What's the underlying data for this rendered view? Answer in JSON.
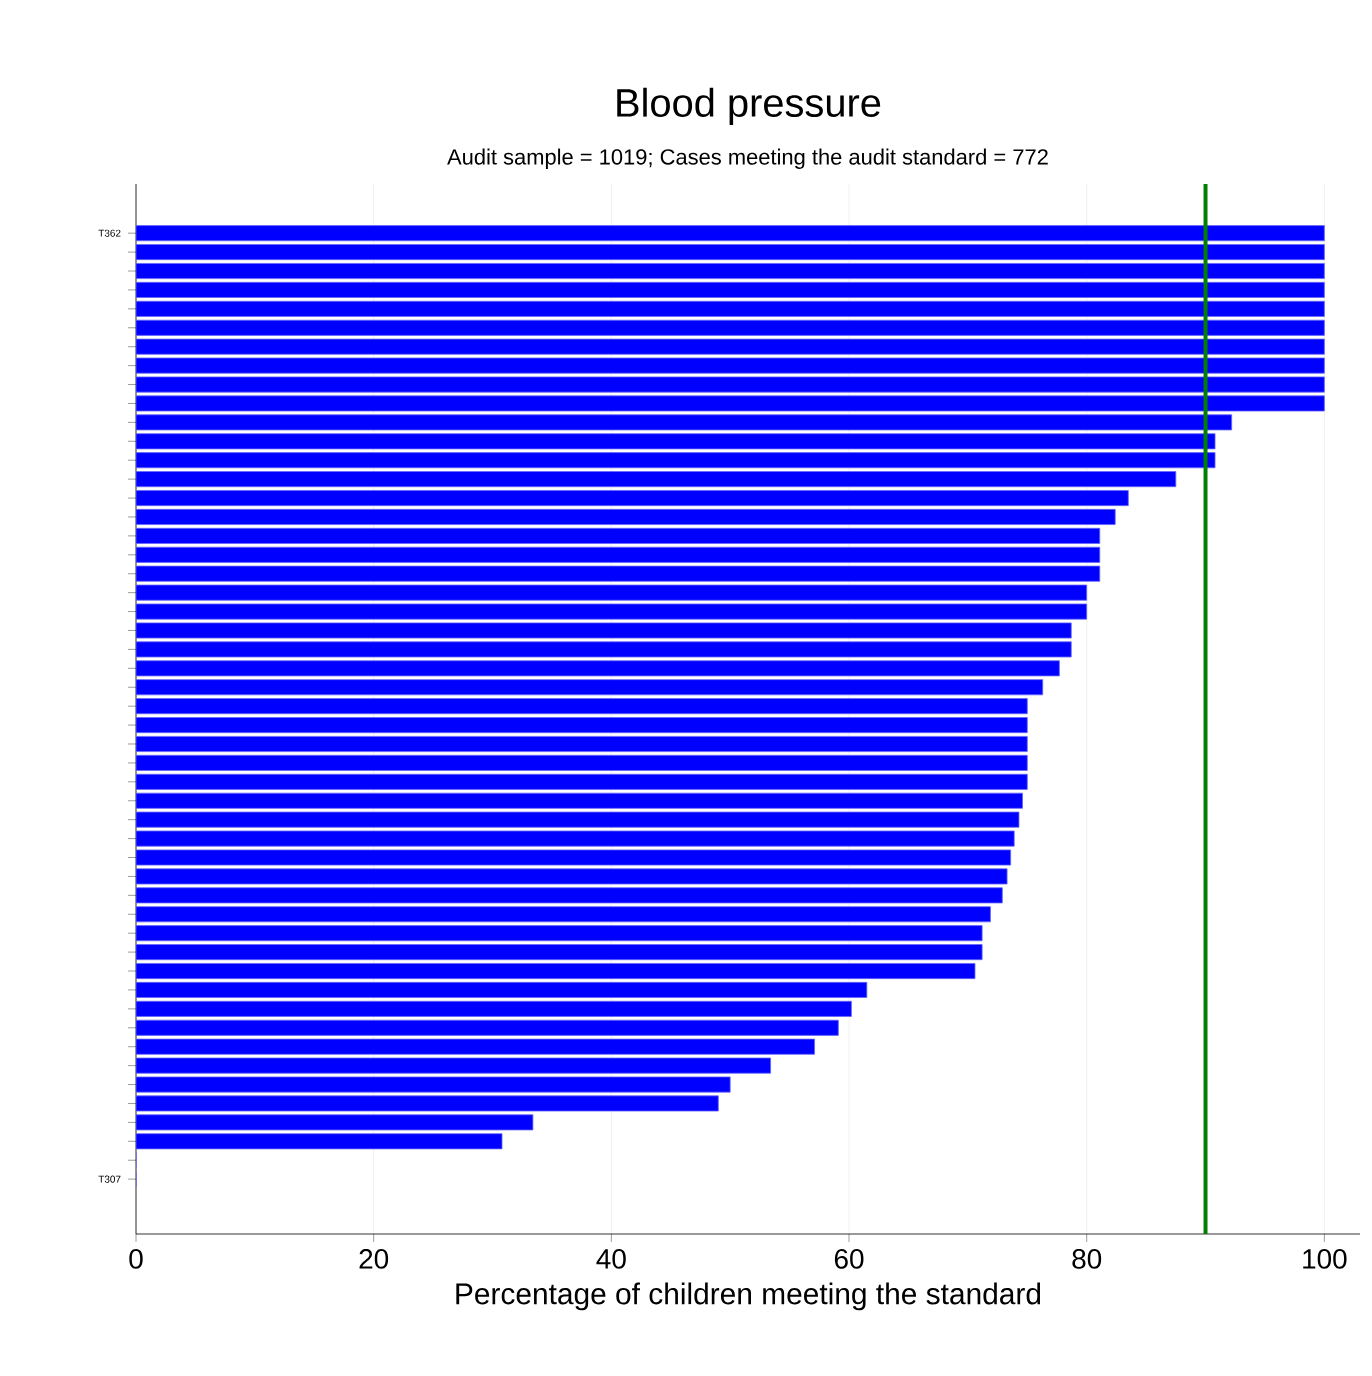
{
  "chart_data": {
    "type": "bar",
    "orientation": "horizontal",
    "title": "Blood pressure",
    "subtitle": "Audit sample = 1019; Cases meeting the audit standard = 772",
    "xlabel": "Percentage of children meeting the standard",
    "categories": [
      "T362",
      null,
      null,
      null,
      null,
      null,
      null,
      null,
      null,
      null,
      null,
      null,
      null,
      null,
      null,
      null,
      null,
      null,
      null,
      null,
      null,
      null,
      null,
      null,
      null,
      null,
      null,
      null,
      null,
      null,
      null,
      null,
      null,
      null,
      null,
      null,
      null,
      null,
      null,
      null,
      null,
      null,
      null,
      null,
      null,
      null,
      null,
      null,
      null,
      null,
      "T307"
    ],
    "values": [
      100,
      100,
      100,
      100,
      100,
      100,
      100,
      100,
      100,
      100,
      92.2,
      90.8,
      90.8,
      87.5,
      83.5,
      82.4,
      81.1,
      81.1,
      81.1,
      80.0,
      80.0,
      78.7,
      78.7,
      77.7,
      76.3,
      75.0,
      75.0,
      75.0,
      75.0,
      75.0,
      74.6,
      74.3,
      73.9,
      73.6,
      73.3,
      72.9,
      71.9,
      71.2,
      71.2,
      70.6,
      61.5,
      60.2,
      59.1,
      57.1,
      53.4,
      50.0,
      49.0,
      33.4,
      30.8,
      0,
      0
    ],
    "color": "#0000ff",
    "xlim": [
      0,
      103
    ],
    "xticks": [
      0,
      20,
      40,
      60,
      80,
      100
    ],
    "grid": "x",
    "ref_lines": [
      {
        "axis": "x",
        "value": 90,
        "color": "#008000"
      }
    ]
  }
}
